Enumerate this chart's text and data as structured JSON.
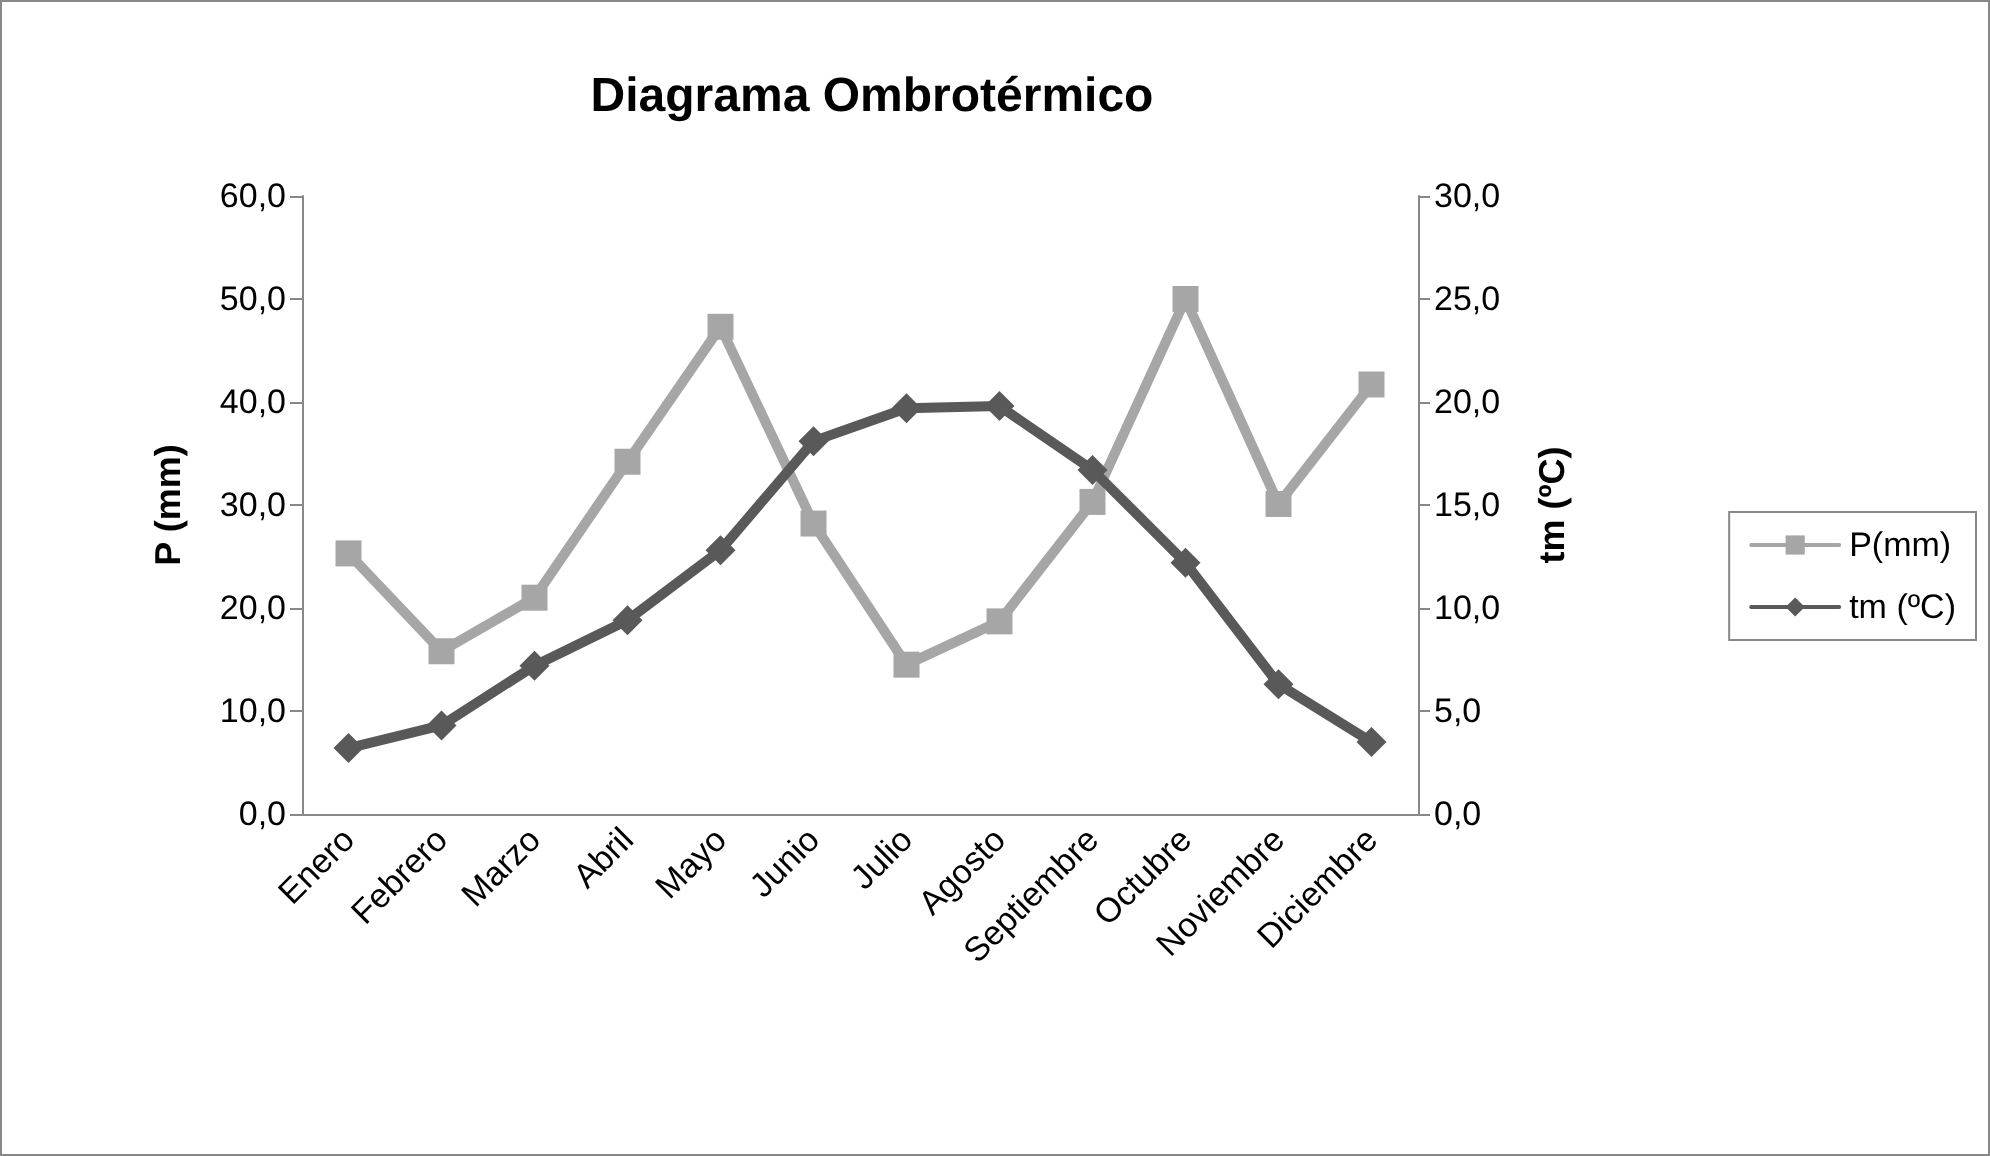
{
  "chart_data": {
    "type": "line",
    "title": "Diagrama Ombrotérmico",
    "ylabel": "P (mm)",
    "y2label": "tm (ºC)",
    "categories": [
      "Enero",
      "Febrero",
      "Marzo",
      "Abril",
      "Mayo",
      "Junio",
      "Julio",
      "Agosto",
      "Septiembre",
      "Octubre",
      "Noviembre",
      "Diciembre"
    ],
    "series": [
      {
        "name": "P(mm)",
        "color": "#a6a6a6",
        "marker": "square",
        "values": [
          25.3,
          15.8,
          21.0,
          34.2,
          47.3,
          28.2,
          14.5,
          18.7,
          30.3,
          50.0,
          30.1,
          41.7
        ]
      },
      {
        "name": "tm (ºC)",
        "color": "#595959",
        "marker": "diamond",
        "axis": "y2",
        "values": [
          3.2,
          4.3,
          7.2,
          9.4,
          12.8,
          18.1,
          19.7,
          19.8,
          16.7,
          12.2,
          6.3,
          3.5
        ]
      }
    ],
    "ylim": [
      0,
      60
    ],
    "yticks": [
      {
        "value": 0,
        "label": "0,0"
      },
      {
        "value": 10,
        "label": "10,0"
      },
      {
        "value": 20,
        "label": "20,0"
      },
      {
        "value": 30,
        "label": "30,0"
      },
      {
        "value": 40,
        "label": "40,0"
      },
      {
        "value": 50,
        "label": "50,0"
      },
      {
        "value": 60,
        "label": "60,0"
      }
    ],
    "y2lim": [
      0,
      30
    ],
    "y2ticks": [
      {
        "value": 0,
        "label": "0,0"
      },
      {
        "value": 5,
        "label": "5,0"
      },
      {
        "value": 10,
        "label": "10,0"
      },
      {
        "value": 15,
        "label": "15,0"
      },
      {
        "value": 20,
        "label": "20,0"
      },
      {
        "value": 25,
        "label": "25,0"
      },
      {
        "value": 30,
        "label": "30,0"
      }
    ],
    "grid": false,
    "legend": "right",
    "line_style": "solid"
  }
}
